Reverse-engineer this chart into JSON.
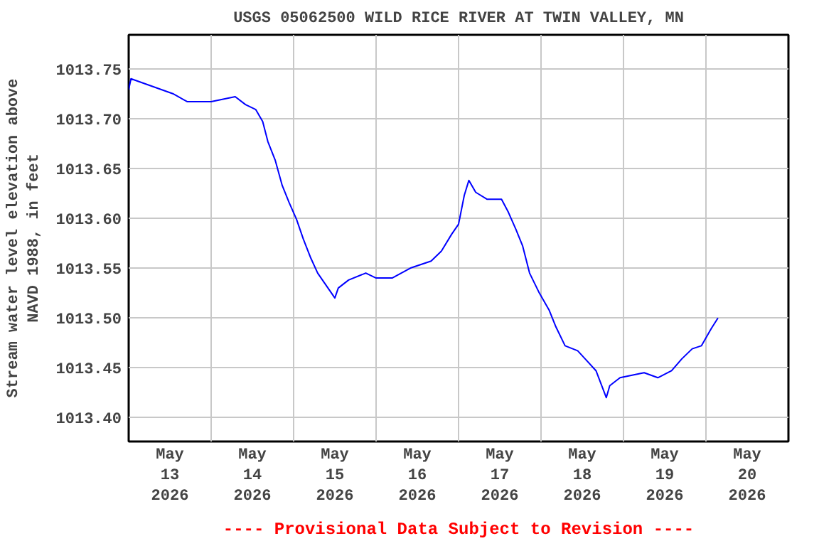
{
  "chart_data": {
    "type": "line",
    "title": "USGS 05062500 WILD RICE RIVER AT TWIN VALLEY, MN",
    "ylabel": "Stream water level elevation above NAVD 1988, in feet",
    "annotations": [
      "---- Provisional Data Subject to Revision ----"
    ],
    "x": [
      "2026-05-13T00:00",
      "2026-05-13T00:40",
      "2026-05-13T12:50",
      "2026-05-13T17:00",
      "2026-05-14T00:00",
      "2026-05-14T07:00",
      "2026-05-14T10:00",
      "2026-05-14T13:00",
      "2026-05-14T15:00",
      "2026-05-14T16:30",
      "2026-05-14T18:40",
      "2026-05-14T20:40",
      "2026-05-14T22:40",
      "2026-05-15T00:50",
      "2026-05-15T02:50",
      "2026-05-15T05:00",
      "2026-05-15T07:00",
      "2026-05-15T09:00",
      "2026-05-15T12:00",
      "2026-05-15T13:00",
      "2026-05-15T16:00",
      "2026-05-15T21:00",
      "2026-05-16T00:00",
      "2026-05-16T04:40",
      "2026-05-16T10:00",
      "2026-05-16T16:00",
      "2026-05-16T19:00",
      "2026-05-16T22:00",
      "2026-05-17T00:00",
      "2026-05-17T01:40",
      "2026-05-17T03:00",
      "2026-05-17T05:00",
      "2026-05-17T08:20",
      "2026-05-17T12:30",
      "2026-05-17T14:30",
      "2026-05-17T16:40",
      "2026-05-17T18:40",
      "2026-05-17T20:40",
      "2026-05-17T23:30",
      "2026-05-18T02:20",
      "2026-05-18T04:20",
      "2026-05-18T07:00",
      "2026-05-18T10:40",
      "2026-05-18T13:20",
      "2026-05-18T16:00",
      "2026-05-18T19:00",
      "2026-05-18T20:00",
      "2026-05-18T23:00",
      "2026-05-19T06:00",
      "2026-05-19T10:00",
      "2026-05-19T14:00",
      "2026-05-19T17:00",
      "2026-05-19T20:00",
      "2026-05-19T22:40",
      "2026-05-20T01:30",
      "2026-05-20T03:30"
    ],
    "series": [
      {
        "color": "#0000ff",
        "values": [
          1013.729,
          1013.74,
          1013.725,
          1013.717,
          1013.717,
          1013.722,
          1013.714,
          1013.709,
          1013.697,
          1013.677,
          1013.658,
          1013.633,
          1013.616,
          1013.599,
          1013.579,
          1013.56,
          1013.545,
          1013.535,
          1013.52,
          1013.53,
          1013.538,
          1013.545,
          1013.54,
          1013.54,
          1013.55,
          1013.557,
          1013.567,
          1013.584,
          1013.594,
          1013.623,
          1013.638,
          1013.626,
          1013.619,
          1013.619,
          1013.606,
          1013.589,
          1013.572,
          1013.545,
          1013.525,
          1013.508,
          1013.491,
          1013.472,
          1013.467,
          1013.457,
          1013.447,
          1013.42,
          1013.432,
          1013.44,
          1013.445,
          1013.44,
          1013.447,
          1013.459,
          1013.469,
          1013.472,
          1013.489,
          1013.5
        ]
      }
    ],
    "xlim": [
      "2026-05-13T00:00",
      "2026-05-21T00:00"
    ],
    "xticks": [
      {
        "value": "2026-05-13T12:00",
        "label": "May 13 2026"
      },
      {
        "value": "2026-05-14T00:00",
        "label": null
      },
      {
        "value": "2026-05-14T12:00",
        "label": "May 14 2026"
      },
      {
        "value": "2026-05-15T00:00",
        "label": null
      },
      {
        "value": "2026-05-15T12:00",
        "label": "May 15 2026"
      },
      {
        "value": "2026-05-16T00:00",
        "label": null
      },
      {
        "value": "2026-05-16T12:00",
        "label": "May 16 2026"
      },
      {
        "value": "2026-05-17T00:00",
        "label": null
      },
      {
        "value": "2026-05-17T12:00",
        "label": "May 17 2026"
      },
      {
        "value": "2026-05-18T00:00",
        "label": null
      },
      {
        "value": "2026-05-18T12:00",
        "label": "May 18 2026"
      },
      {
        "value": "2026-05-19T00:00",
        "label": null
      },
      {
        "value": "2026-05-19T12:00",
        "label": "May 19 2026"
      },
      {
        "value": "2026-05-20T00:00",
        "label": null
      },
      {
        "value": "2026-05-20T12:00",
        "label": "May 20 2026"
      }
    ],
    "ylim": [
      1013.376,
      1013.784
    ],
    "yticks": [
      {
        "value": 1013.4,
        "label": "1013.40"
      },
      {
        "value": 1013.45,
        "label": "1013.45"
      },
      {
        "value": 1013.5,
        "label": "1013.50"
      },
      {
        "value": 1013.55,
        "label": "1013.55"
      },
      {
        "value": 1013.6,
        "label": "1013.60"
      },
      {
        "value": 1013.65,
        "label": "1013.65"
      },
      {
        "value": 1013.7,
        "label": "1013.70"
      },
      {
        "value": 1013.75,
        "label": "1013.75"
      }
    ],
    "grid": true,
    "line_style": "solid"
  }
}
